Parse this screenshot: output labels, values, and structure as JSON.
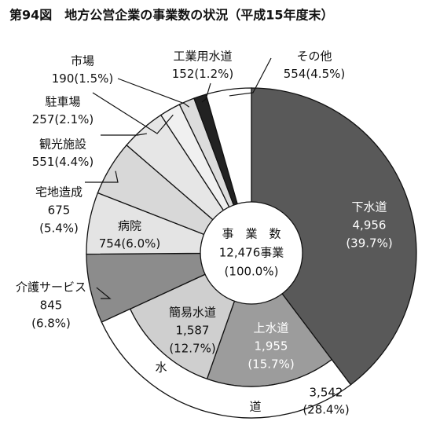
{
  "chart_data": {
    "type": "donut",
    "title": "第94図　地方公営企業の事業数の状況（平成15年度末）",
    "center_labels": [
      "事　業　数",
      "12,476事業",
      "(100.0%)"
    ],
    "categories": [
      "下水道",
      "上水道",
      "簡易水道",
      "介護サービス",
      "病院",
      "宅地造成",
      "観光施設",
      "駐車場",
      "市場",
      "工業用水道",
      "その他"
    ],
    "values": [
      4956,
      1955,
      1587,
      845,
      754,
      675,
      551,
      257,
      190,
      152,
      554
    ],
    "value_labels": [
      "4,956",
      "1,955",
      "1,587",
      "845",
      "754",
      "675",
      "551",
      "257",
      "190",
      "152",
      "554"
    ],
    "percent_labels": [
      "(39.7%)",
      "(15.7%)",
      "(12.7%)",
      "(6.8%)",
      "(6.0%)",
      "(5.4%)",
      "(4.4%)",
      "(2.1%)",
      "(1.5%)",
      "(1.2%)",
      "(4.5%)"
    ],
    "colors": [
      "#595959",
      "#9c9c9c",
      "#cfcfcf",
      "#8c8c8c",
      "#e4e4e4",
      "#d8d8d8",
      "#e6e6e6",
      "#f0f0f0",
      "#dcdcdc",
      "#222222",
      "#ffffff"
    ],
    "group": {
      "label_parts": [
        "水",
        "道"
      ],
      "value": 3542,
      "value_label": "3,542",
      "percent_label": "(28.4%)",
      "members": [
        1,
        2
      ]
    }
  }
}
